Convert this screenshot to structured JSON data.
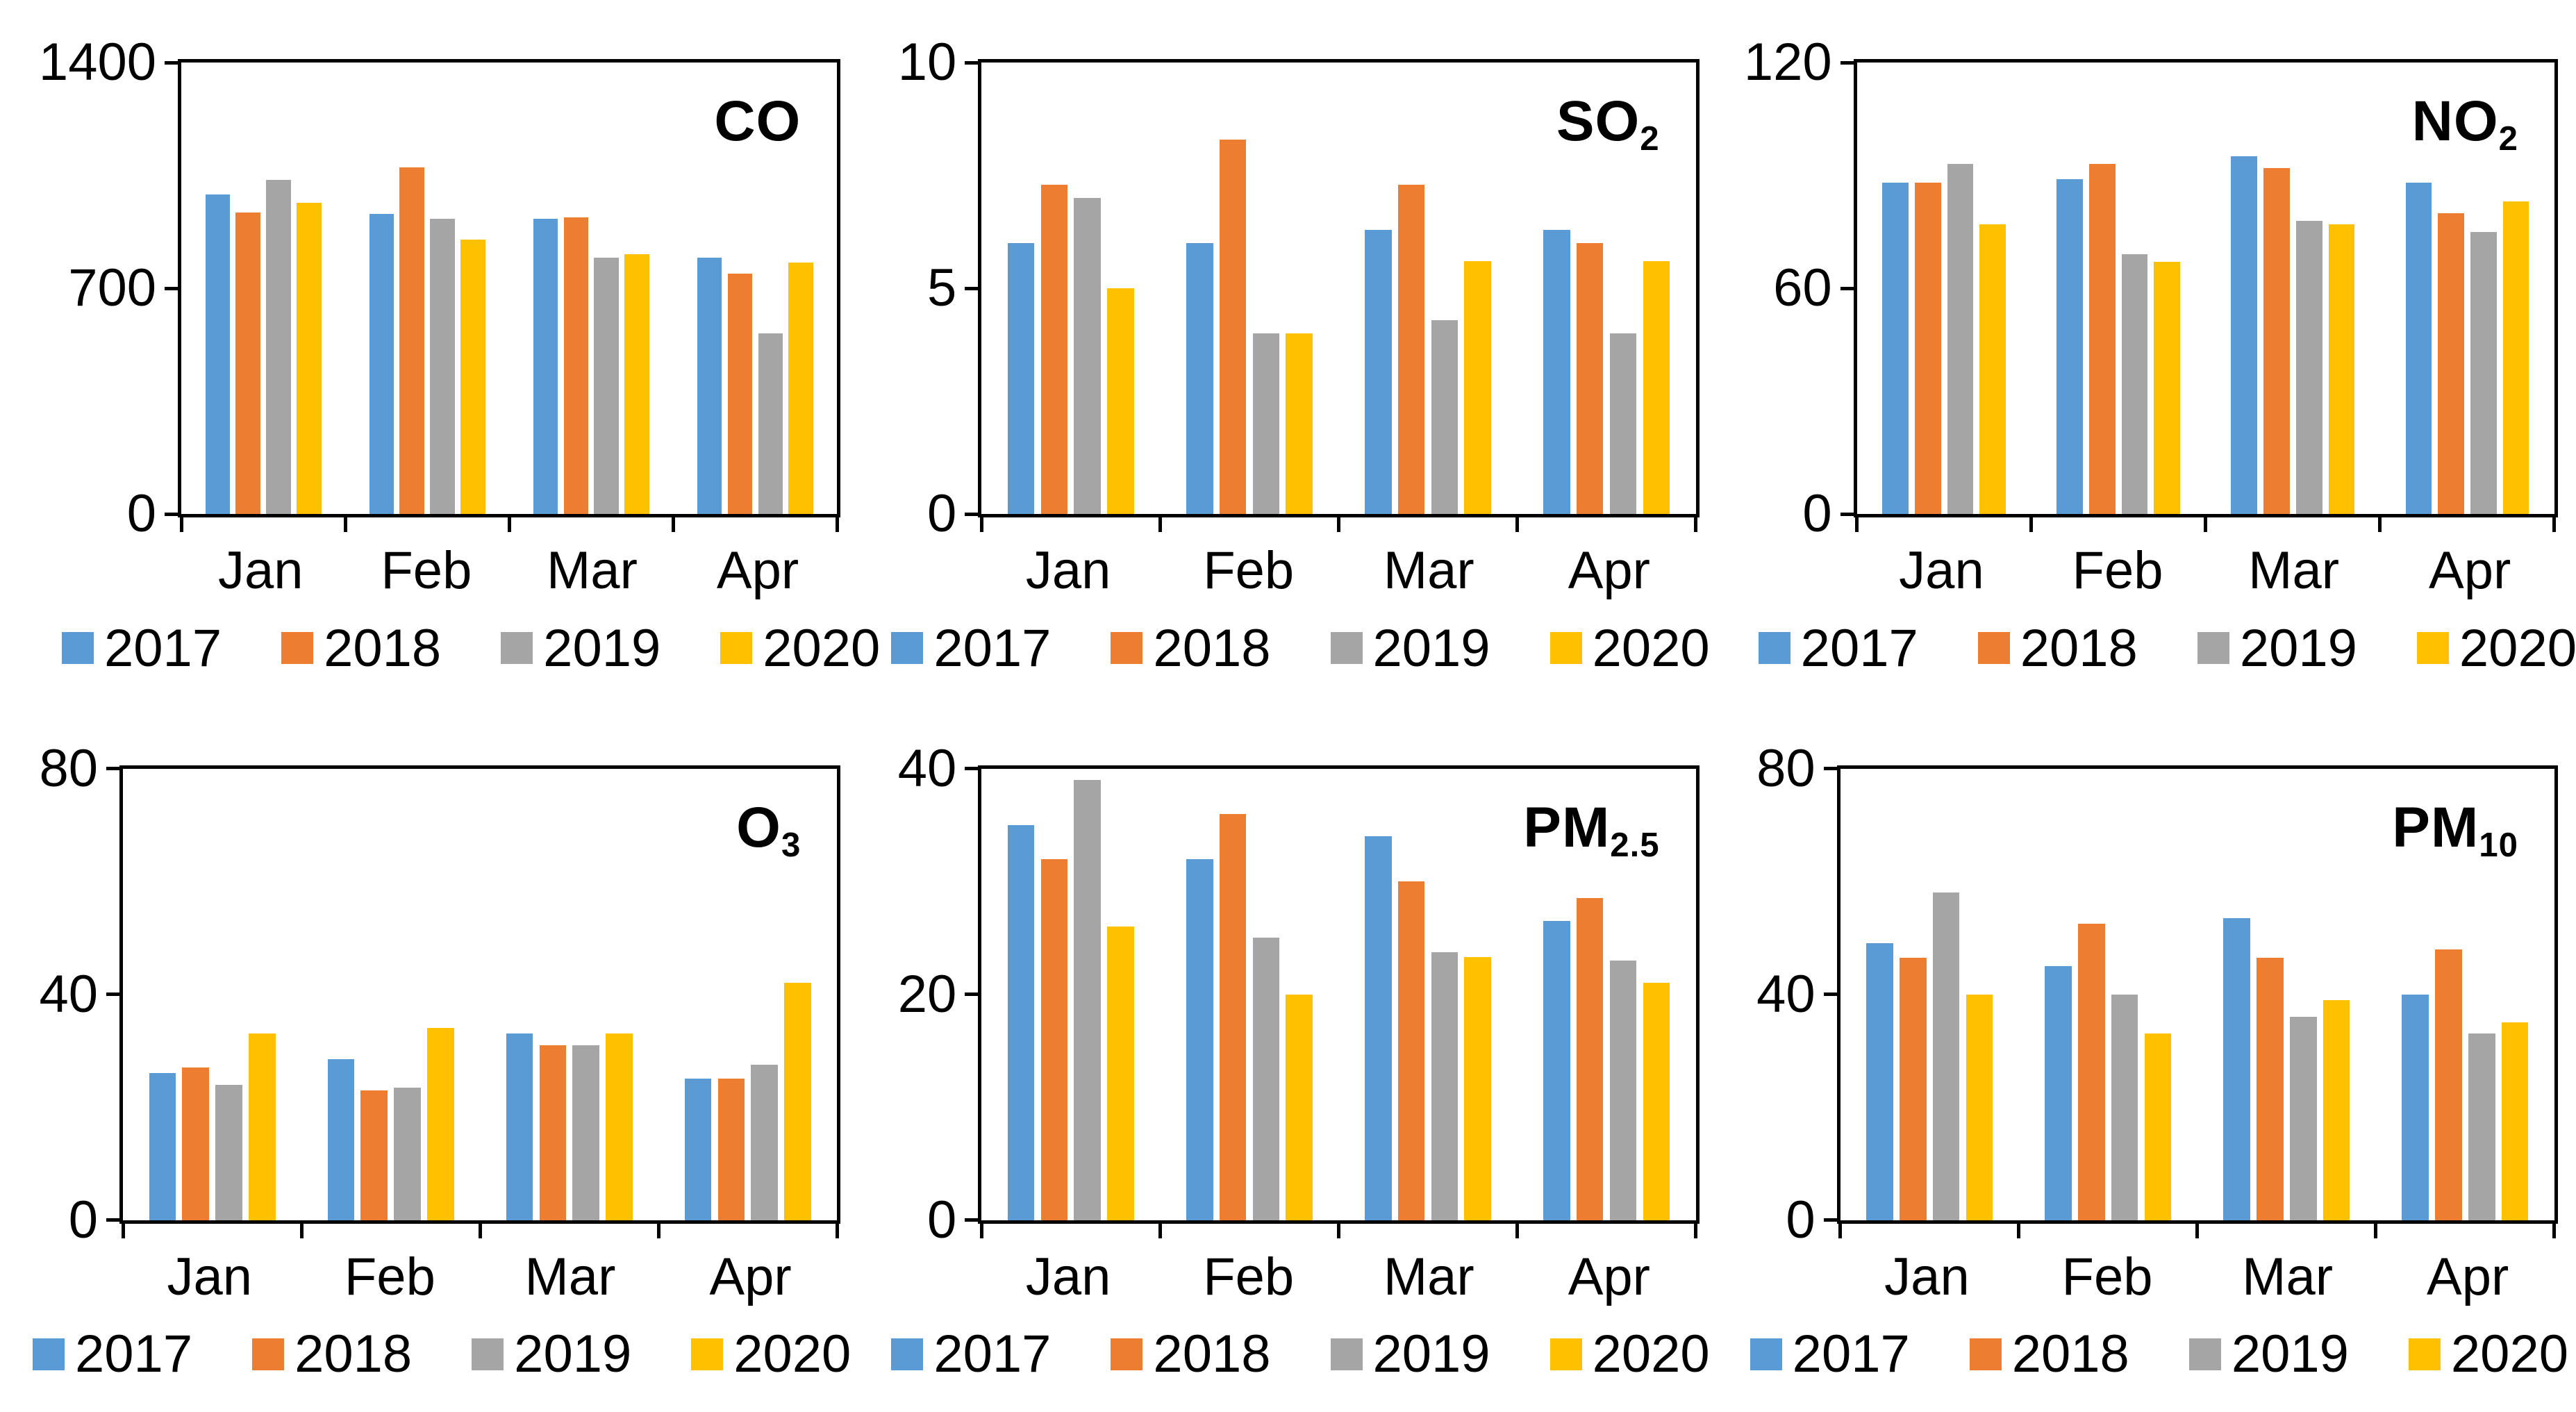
{
  "figure": {
    "description": "Monthly air pollutant concentrations, January to April, years 2017-2020",
    "background": "#ffffff",
    "text_color": "#000000",
    "axis_color": "#000000"
  },
  "chart_data": [
    {
      "type": "bar",
      "title_main": "CO",
      "title_sub": "",
      "categories": [
        "Jan",
        "Feb",
        "Mar",
        "Apr"
      ],
      "ylim": [
        0,
        1400
      ],
      "yticks": [
        0,
        700,
        1400
      ],
      "grid": false,
      "legend_position": "bottom",
      "series": [
        {
          "name": "2017",
          "color": "#5B9BD5",
          "values": [
            990,
            930,
            915,
            795
          ]
        },
        {
          "name": "2018",
          "color": "#ED7D31",
          "values": [
            935,
            1075,
            920,
            745
          ]
        },
        {
          "name": "2019",
          "color": "#A5A5A5",
          "values": [
            1035,
            915,
            795,
            560
          ]
        },
        {
          "name": "2020",
          "color": "#FFC000",
          "values": [
            965,
            850,
            805,
            780
          ]
        }
      ]
    },
    {
      "type": "bar",
      "title_main": "SO",
      "title_sub": "2",
      "categories": [
        "Jan",
        "Feb",
        "Mar",
        "Apr"
      ],
      "ylim": [
        0,
        10
      ],
      "yticks": [
        0,
        5,
        10
      ],
      "grid": false,
      "legend_position": "bottom",
      "series": [
        {
          "name": "2017",
          "color": "#5B9BD5",
          "values": [
            6.0,
            6.0,
            6.3,
            6.3
          ]
        },
        {
          "name": "2018",
          "color": "#ED7D31",
          "values": [
            7.3,
            8.3,
            7.3,
            6.0
          ]
        },
        {
          "name": "2019",
          "color": "#A5A5A5",
          "values": [
            7.0,
            4.0,
            4.3,
            4.0
          ]
        },
        {
          "name": "2020",
          "color": "#FFC000",
          "values": [
            5.0,
            4.0,
            5.6,
            5.6
          ]
        }
      ]
    },
    {
      "type": "bar",
      "title_main": "NO",
      "title_sub": "2",
      "categories": [
        "Jan",
        "Feb",
        "Mar",
        "Apr"
      ],
      "ylim": [
        0,
        120
      ],
      "yticks": [
        0,
        60,
        120
      ],
      "grid": false,
      "legend_position": "bottom",
      "series": [
        {
          "name": "2017",
          "color": "#5B9BD5",
          "values": [
            88,
            89,
            95,
            88
          ]
        },
        {
          "name": "2018",
          "color": "#ED7D31",
          "values": [
            88,
            93,
            92,
            80
          ]
        },
        {
          "name": "2019",
          "color": "#A5A5A5",
          "values": [
            93,
            69,
            78,
            75
          ]
        },
        {
          "name": "2020",
          "color": "#FFC000",
          "values": [
            77,
            67,
            77,
            83
          ]
        }
      ]
    },
    {
      "type": "bar",
      "title_main": "O",
      "title_sub": "3",
      "categories": [
        "Jan",
        "Feb",
        "Mar",
        "Apr"
      ],
      "ylim": [
        0,
        80
      ],
      "yticks": [
        0,
        40,
        80
      ],
      "grid": false,
      "legend_position": "bottom",
      "series": [
        {
          "name": "2017",
          "color": "#5B9BD5",
          "values": [
            26,
            28.5,
            33,
            25
          ]
        },
        {
          "name": "2018",
          "color": "#ED7D31",
          "values": [
            27,
            23,
            31,
            25
          ]
        },
        {
          "name": "2019",
          "color": "#A5A5A5",
          "values": [
            24,
            23.5,
            31,
            27.5
          ]
        },
        {
          "name": "2020",
          "color": "#FFC000",
          "values": [
            33,
            34,
            33,
            42
          ]
        }
      ]
    },
    {
      "type": "bar",
      "title_main": "PM",
      "title_sub": "2.5",
      "categories": [
        "Jan",
        "Feb",
        "Mar",
        "Apr"
      ],
      "ylim": [
        0,
        40
      ],
      "yticks": [
        0,
        20,
        40
      ],
      "grid": false,
      "legend_position": "bottom",
      "series": [
        {
          "name": "2017",
          "color": "#5B9BD5",
          "values": [
            35,
            32,
            34,
            26.5
          ]
        },
        {
          "name": "2018",
          "color": "#ED7D31",
          "values": [
            32,
            36,
            30,
            28.5
          ]
        },
        {
          "name": "2019",
          "color": "#A5A5A5",
          "values": [
            39,
            25,
            23.7,
            23
          ]
        },
        {
          "name": "2020",
          "color": "#FFC000",
          "values": [
            26,
            20,
            23.3,
            21
          ]
        }
      ]
    },
    {
      "type": "bar",
      "title_main": "PM",
      "title_sub": "10",
      "categories": [
        "Jan",
        "Feb",
        "Mar",
        "Apr"
      ],
      "ylim": [
        0,
        80
      ],
      "yticks": [
        0,
        40,
        80
      ],
      "grid": false,
      "legend_position": "bottom",
      "series": [
        {
          "name": "2017",
          "color": "#5B9BD5",
          "values": [
            49,
            45,
            53.5,
            40
          ]
        },
        {
          "name": "2018",
          "color": "#ED7D31",
          "values": [
            46.5,
            52.5,
            46.5,
            48
          ]
        },
        {
          "name": "2019",
          "color": "#A5A5A5",
          "values": [
            58,
            40,
            36,
            33
          ]
        },
        {
          "name": "2020",
          "color": "#FFC000",
          "values": [
            40,
            33,
            39,
            35
          ]
        }
      ]
    }
  ]
}
